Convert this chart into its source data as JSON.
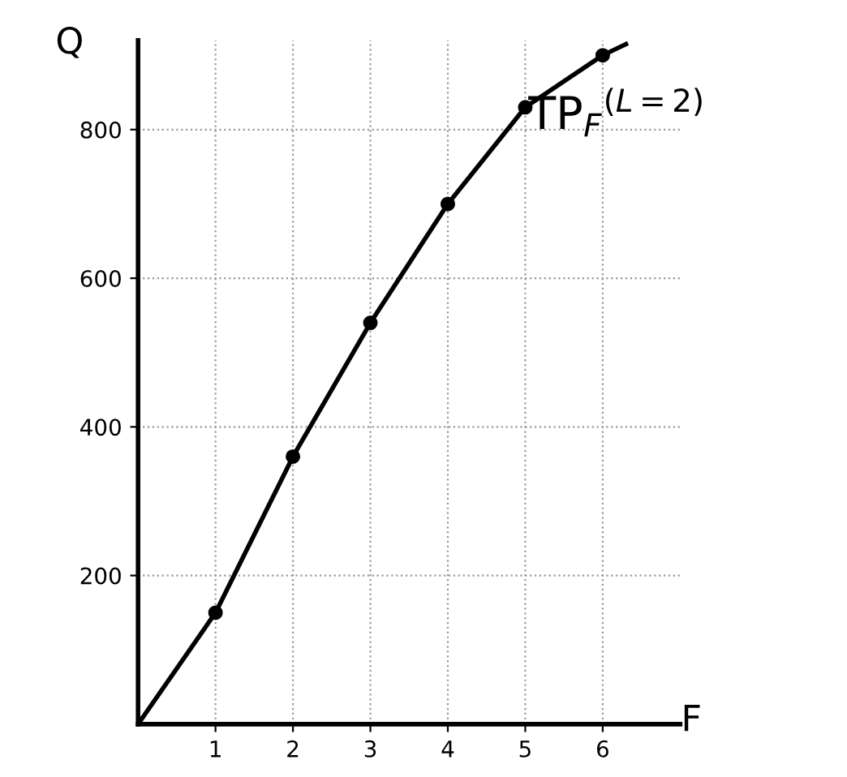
{
  "chart_data": {
    "type": "line",
    "xlabel": "F",
    "ylabel": "Q",
    "series": [
      {
        "color": "#000000",
        "x": [
          0,
          1,
          2,
          3,
          4,
          5,
          6,
          6.3
        ],
        "values": [
          0,
          150,
          360,
          540,
          700,
          830,
          900,
          915
        ],
        "marker": "none"
      },
      {
        "type": "scatter",
        "color": "#000000",
        "x": [
          1,
          2,
          3,
          4,
          5,
          6
        ],
        "values": [
          150,
          360,
          540,
          700,
          830,
          900
        ],
        "marker": "circle"
      }
    ],
    "annotations": [
      "TP$_{F}$$^{(L=2)}$"
    ],
    "xlim": [
      0,
      7
    ],
    "ylim": [
      0,
      920
    ],
    "xticks": [
      1,
      2,
      3,
      4,
      5,
      6
    ],
    "yticks": [
      200,
      400,
      600,
      800
    ],
    "grid": true,
    "legend": false
  }
}
